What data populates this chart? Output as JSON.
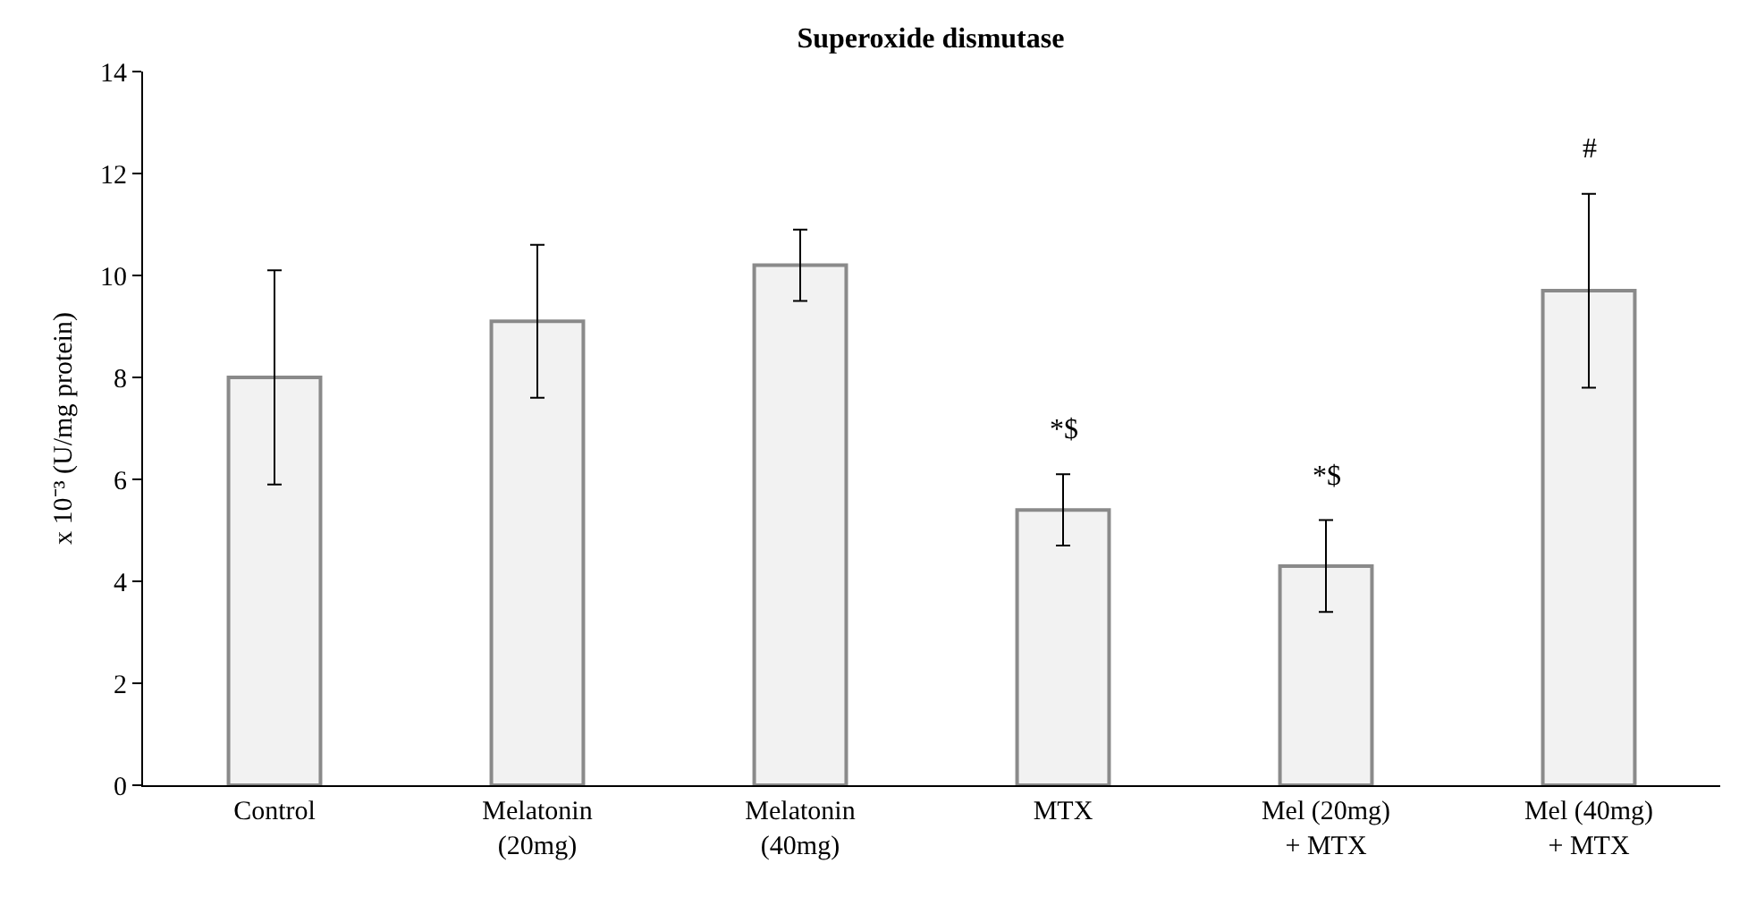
{
  "chart_data": {
    "type": "bar",
    "title": "Superoxide dismutase",
    "ylabel": "x 10⁻³ (U/mg protein)",
    "categories": [
      "Control",
      "Melatonin (20mg)",
      "Melatonin (40mg)",
      "MTX",
      "Mel (20mg) + MTX",
      "Mel (40mg) + MTX"
    ],
    "values": [
      8.0,
      9.1,
      10.2,
      5.4,
      4.3,
      9.7
    ],
    "errors": [
      [
        5.9,
        10.1
      ],
      [
        7.6,
        10.6
      ],
      [
        9.5,
        10.9
      ],
      [
        4.7,
        6.1
      ],
      [
        3.4,
        5.2
      ],
      [
        7.8,
        11.6
      ]
    ],
    "color": "#f2f2f2",
    "ylim": [
      0,
      14
    ],
    "yticks": [
      0,
      2,
      4,
      6,
      8,
      10,
      12,
      14
    ],
    "grid": false,
    "annotations": [
      {
        "text": "*$",
        "x": "MTX",
        "y": 6.1
      },
      {
        "text": "*$",
        "x": "Mel (20mg) + MTX",
        "y": 5.2
      },
      {
        "text": "#",
        "x": "Mel (40mg) + MTX",
        "y": 11.6
      }
    ]
  }
}
